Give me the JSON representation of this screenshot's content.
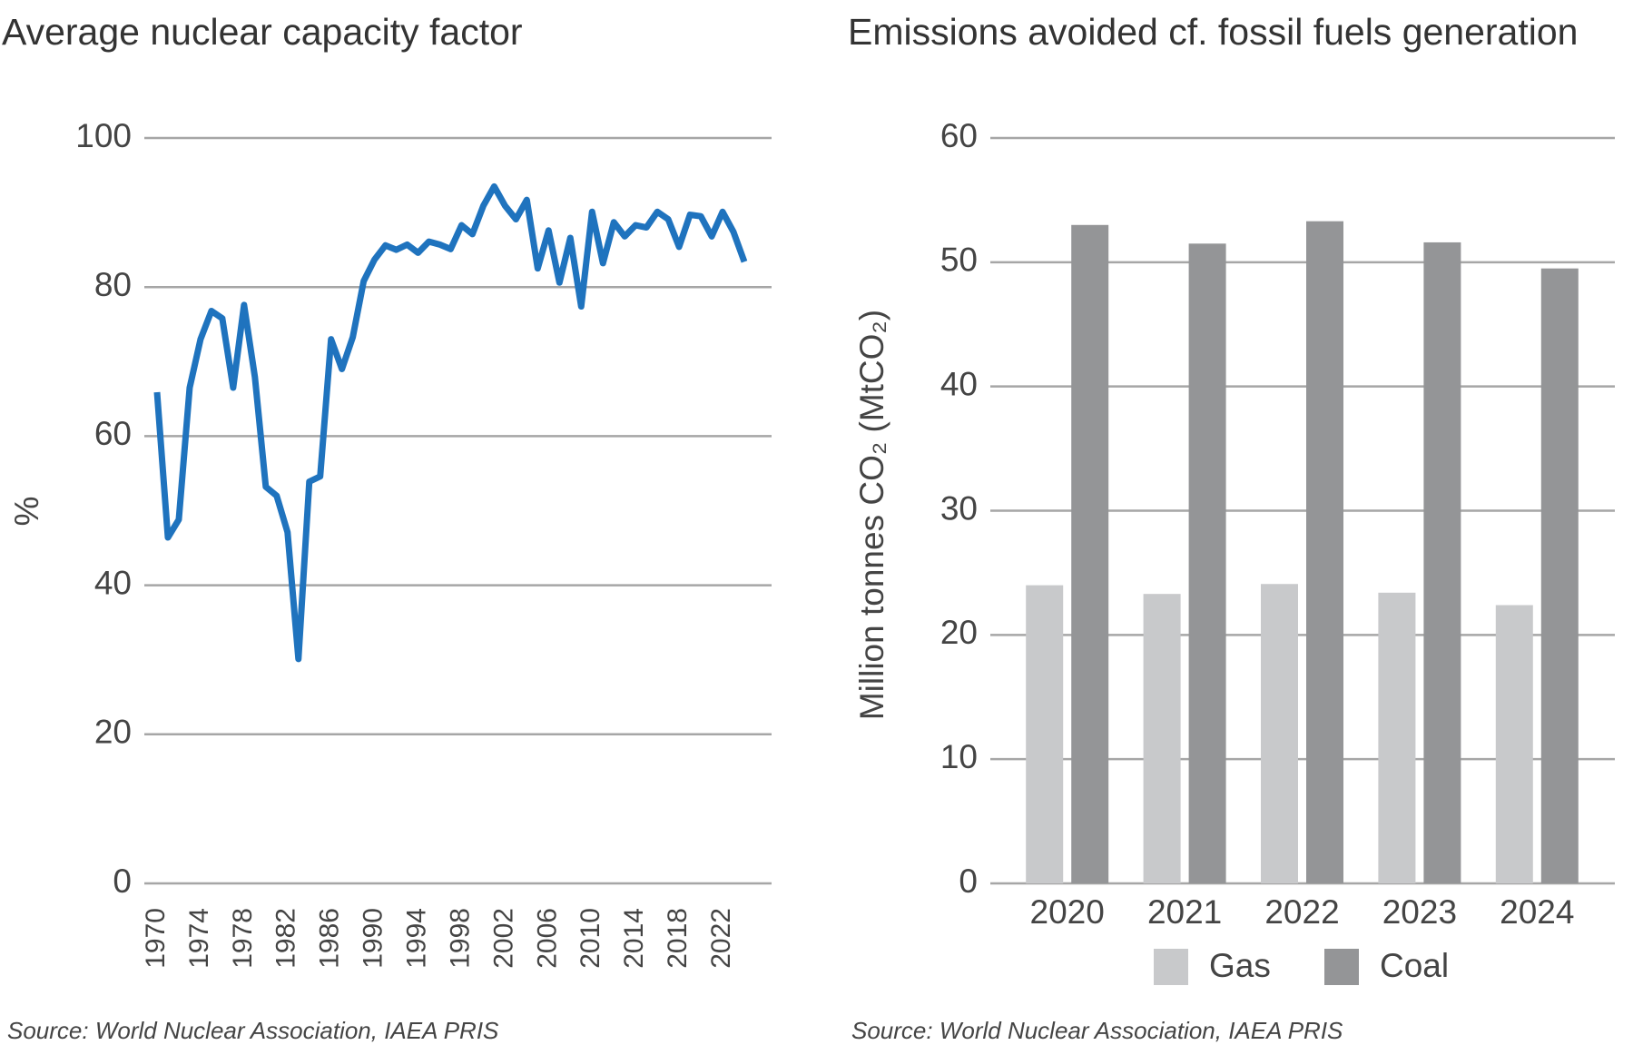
{
  "chart_data": [
    {
      "type": "line",
      "title": "Average nuclear capacity factor",
      "ylabel": "%",
      "x": [
        1970,
        1971,
        1972,
        1973,
        1974,
        1975,
        1976,
        1977,
        1978,
        1979,
        1980,
        1981,
        1982,
        1983,
        1984,
        1985,
        1986,
        1987,
        1988,
        1989,
        1990,
        1991,
        1992,
        1993,
        1994,
        1995,
        1996,
        1997,
        1998,
        1999,
        2000,
        2001,
        2002,
        2003,
        2004,
        2005,
        2006,
        2007,
        2008,
        2009,
        2010,
        2011,
        2012,
        2013,
        2014,
        2015,
        2016,
        2017,
        2018,
        2019,
        2020,
        2021,
        2022,
        2023,
        2024
      ],
      "series": [
        {
          "name": "Average nuclear capacity factor",
          "color": "#1f73be",
          "values": [
            65.9,
            46.4,
            48.8,
            66.5,
            73,
            76.8,
            75.8,
            66.5,
            77.6,
            67.9,
            53.2,
            52,
            47.1,
            30.1,
            53.9,
            54.6,
            73,
            69,
            73.3,
            80.8,
            83.7,
            85.6,
            85,
            85.7,
            84.6,
            86.1,
            85.7,
            85.1,
            88.3,
            87.1,
            90.9,
            93.5,
            90.9,
            89.1,
            91.7,
            82.5,
            87.6,
            80.6,
            86.6,
            77.4,
            90.1,
            83.2,
            88.7,
            86.8,
            88.3,
            88,
            90.1,
            89.1,
            85.4,
            89.7,
            89.5,
            86.8,
            90.1,
            87.4,
            83.4
          ]
        }
      ],
      "xlim": [
        1970,
        2024
      ],
      "xticks": [
        1970,
        1974,
        1978,
        1982,
        1986,
        1990,
        1994,
        1998,
        2002,
        2006,
        2010,
        2014,
        2018,
        2022
      ],
      "ylim": [
        0,
        100
      ],
      "yticks": [
        0,
        20,
        40,
        60,
        80,
        100
      ],
      "grid": true,
      "source": "Source: World Nuclear Association, IAEA PRIS"
    },
    {
      "type": "bar",
      "title": "Emissions avoided cf. fossil fuels generation",
      "ylabel": "Million tonnes CO₂ (MtCO₂)",
      "categories": [
        "2020",
        "2021",
        "2022",
        "2023",
        "2024"
      ],
      "series": [
        {
          "name": "Gas",
          "color": "#c8c9cb",
          "values": [
            24,
            23.3,
            24.1,
            23.4,
            22.4
          ]
        },
        {
          "name": "Coal",
          "color": "#949597",
          "values": [
            53,
            51.5,
            53.3,
            51.6,
            49.5
          ]
        }
      ],
      "ylim": [
        0,
        60
      ],
      "yticks": [
        0,
        10,
        20,
        30,
        40,
        50,
        60
      ],
      "grid": true,
      "legend": "bottom",
      "source": "Source: World Nuclear Association, IAEA PRIS"
    }
  ]
}
